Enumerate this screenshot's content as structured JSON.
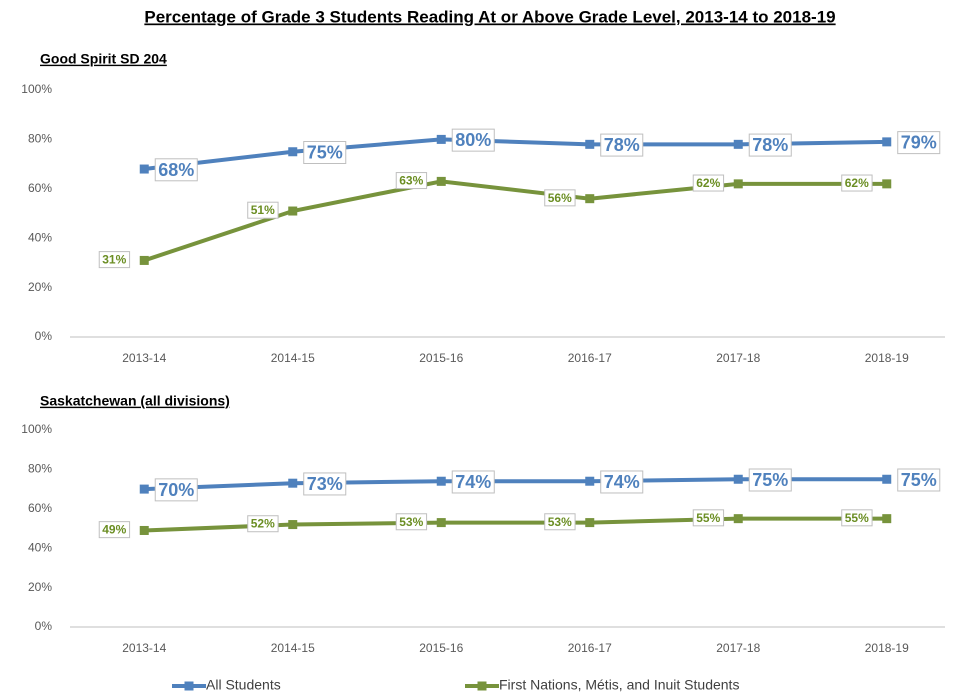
{
  "title": "Percentage of Grade 3 Students Reading At or Above Grade Level, 2013-14 to 2018-19",
  "chart_data": [
    {
      "type": "line",
      "subtitle": "Good Spirit SD 204",
      "categories": [
        "2013-14",
        "2014-15",
        "2015-16",
        "2016-17",
        "2017-18",
        "2018-19"
      ],
      "series": [
        {
          "name": "All Students",
          "color": "#4f81bd",
          "values": [
            68,
            75,
            80,
            78,
            78,
            79
          ],
          "value_labels": [
            "68%",
            "75%",
            "80%",
            "78%",
            "78%",
            "79%"
          ]
        },
        {
          "name": "First Nations, Métis, and Inuit Students",
          "color": "#77933c",
          "values": [
            31,
            51,
            63,
            56,
            62,
            62
          ],
          "value_labels": [
            "31%",
            "51%",
            "63%",
            "56%",
            "62%",
            "62%"
          ]
        }
      ],
      "ylim": [
        0,
        100
      ],
      "yticks": [
        {
          "value": 0,
          "label": "0%"
        },
        {
          "value": 20,
          "label": "20%"
        },
        {
          "value": 40,
          "label": "40%"
        },
        {
          "value": 60,
          "label": "60%"
        },
        {
          "value": 80,
          "label": "80%"
        },
        {
          "value": 100,
          "label": "100%"
        }
      ],
      "legend": "bottom"
    },
    {
      "type": "line",
      "subtitle": "Saskatchewan (all divisions)",
      "categories": [
        "2013-14",
        "2014-15",
        "2015-16",
        "2016-17",
        "2017-18",
        "2018-19"
      ],
      "series": [
        {
          "color": "#4f81bd",
          "values": [
            70,
            73,
            74,
            74,
            75,
            75
          ],
          "value_labels": [
            "70%",
            "73%",
            "74%",
            "74%",
            "75%",
            "75%"
          ]
        },
        {
          "color": "#77933c",
          "values": [
            49,
            52,
            53,
            53,
            55,
            55
          ],
          "value_labels": [
            "49%",
            "52%",
            "53%",
            "53%",
            "55%",
            "55%"
          ]
        }
      ],
      "ylim": [
        0,
        100
      ],
      "yticks": [
        {
          "value": 0,
          "label": "0%"
        },
        {
          "value": 20,
          "label": "20%"
        },
        {
          "value": 40,
          "label": "40%"
        },
        {
          "value": 60,
          "label": "60%"
        },
        {
          "value": 80,
          "label": "80%"
        },
        {
          "value": 100,
          "label": "100%"
        }
      ]
    }
  ]
}
